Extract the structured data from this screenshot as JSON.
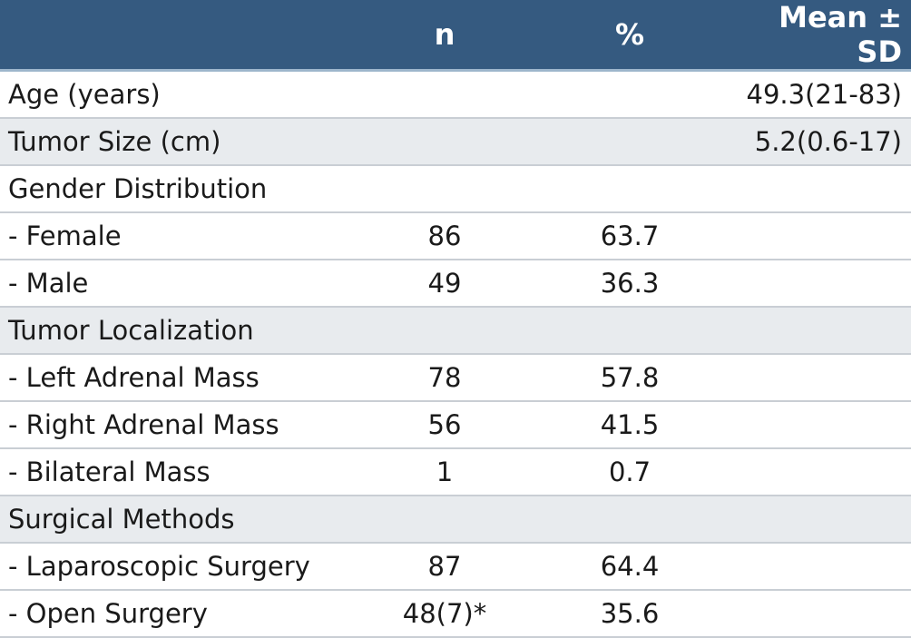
{
  "header": {
    "label": "",
    "n": "n",
    "pct": "%",
    "mean": "Mean ± SD"
  },
  "rows": [
    {
      "label": "Age (years)",
      "n": "",
      "pct": "",
      "mean": "49.3(21-83)"
    },
    {
      "label": "Tumor Size (cm)",
      "n": "",
      "pct": "",
      "mean": "5.2(0.6-17)"
    },
    {
      "label": "Gender Distribution",
      "n": "",
      "pct": "",
      "mean": ""
    },
    {
      "label": "- Female",
      "n": "86",
      "pct": "63.7",
      "mean": ""
    },
    {
      "label": "- Male",
      "n": "49",
      "pct": "36.3",
      "mean": ""
    },
    {
      "label": "Tumor Localization",
      "n": "",
      "pct": "",
      "mean": ""
    },
    {
      "label": "- Left Adrenal Mass",
      "n": "78",
      "pct": "57.8",
      "mean": ""
    },
    {
      "label": "- Right Adrenal Mass",
      "n": "56",
      "pct": "41.5",
      "mean": ""
    },
    {
      "label": "- Bilateral Mass",
      "n": "1",
      "pct": "0.7",
      "mean": ""
    },
    {
      "label": "Surgical Methods",
      "n": "",
      "pct": "",
      "mean": ""
    },
    {
      "label": "- Laparoscopic Surgery",
      "n": "87",
      "pct": "64.4",
      "mean": ""
    },
    {
      "label": "- Open Surgery",
      "n": "48(7)*",
      "pct": "35.6",
      "mean": ""
    }
  ],
  "colors": {
    "header_bg": "#355a80",
    "shade_bg": "#e8ebee"
  }
}
